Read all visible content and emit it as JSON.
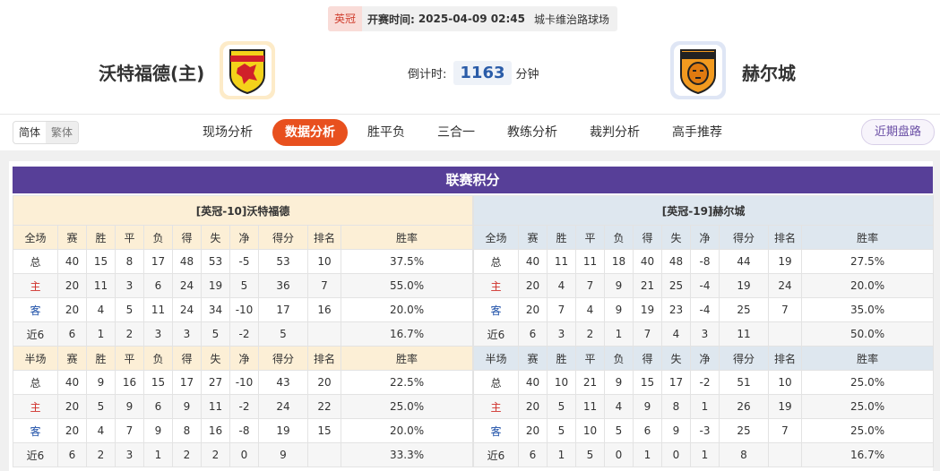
{
  "header": {
    "league": "英冠",
    "kickoff_label": "开赛时间:",
    "kickoff": "2025-04-09 02:45",
    "venue": "城卡维治路球场"
  },
  "home_team": "沃特福德(主)",
  "away_team": "赫尔城",
  "countdown": {
    "label": "倒计时:",
    "value": 1163,
    "unit": "分钟"
  },
  "nav": {
    "languages": [
      "简体",
      "繁体"
    ],
    "tabs": [
      "现场分析",
      "数据分析",
      "胜平负",
      "三合一",
      "教练分析",
      "裁判分析",
      "高手推荐"
    ],
    "active_tab": 1,
    "right_button": "近期盘路"
  },
  "standings": {
    "title": "联赛积分",
    "home_title": "[英冠-10]沃特福德",
    "away_title": "[英冠-19]赫尔城",
    "full": {
      "header": [
        "全场",
        "赛",
        "胜",
        "平",
        "负",
        "得",
        "失",
        "净",
        "得分",
        "排名",
        "胜率"
      ],
      "home": [
        [
          "总",
          40,
          15,
          8,
          17,
          48,
          53,
          -5,
          53,
          10,
          "37.5%"
        ],
        [
          "主",
          20,
          11,
          3,
          6,
          24,
          19,
          5,
          36,
          7,
          "55.0%"
        ],
        [
          "客",
          20,
          4,
          5,
          11,
          24,
          34,
          -10,
          17,
          16,
          "20.0%"
        ],
        [
          "近6",
          6,
          1,
          2,
          3,
          3,
          5,
          -2,
          5,
          null,
          "16.7%"
        ]
      ],
      "away": [
        [
          "总",
          40,
          11,
          11,
          18,
          40,
          48,
          -8,
          44,
          19,
          "27.5%"
        ],
        [
          "主",
          20,
          4,
          7,
          9,
          21,
          25,
          -4,
          19,
          24,
          "20.0%"
        ],
        [
          "客",
          20,
          7,
          4,
          9,
          19,
          23,
          -4,
          25,
          7,
          "35.0%"
        ],
        [
          "近6",
          6,
          3,
          2,
          1,
          7,
          4,
          3,
          11,
          null,
          "50.0%"
        ]
      ]
    },
    "half": {
      "header": [
        "半场",
        "赛",
        "胜",
        "平",
        "负",
        "得",
        "失",
        "净",
        "得分",
        "排名",
        "胜率"
      ],
      "home": [
        [
          "总",
          40,
          9,
          16,
          15,
          17,
          27,
          -10,
          43,
          20,
          "22.5%"
        ],
        [
          "主",
          20,
          5,
          9,
          6,
          9,
          11,
          -2,
          24,
          22,
          "25.0%"
        ],
        [
          "客",
          20,
          4,
          7,
          9,
          8,
          16,
          -8,
          19,
          15,
          "20.0%"
        ],
        [
          "近6",
          6,
          2,
          3,
          1,
          2,
          2,
          0,
          9,
          null,
          "33.3%"
        ]
      ],
      "away": [
        [
          "总",
          40,
          10,
          21,
          9,
          15,
          17,
          -2,
          51,
          10,
          "25.0%"
        ],
        [
          "主",
          20,
          5,
          11,
          4,
          9,
          8,
          1,
          26,
          19,
          "25.0%"
        ],
        [
          "客",
          20,
          5,
          10,
          5,
          6,
          9,
          -3,
          25,
          7,
          "25.0%"
        ],
        [
          "近6",
          6,
          1,
          5,
          0,
          1,
          0,
          1,
          8,
          null,
          "16.7%"
        ]
      ]
    }
  }
}
